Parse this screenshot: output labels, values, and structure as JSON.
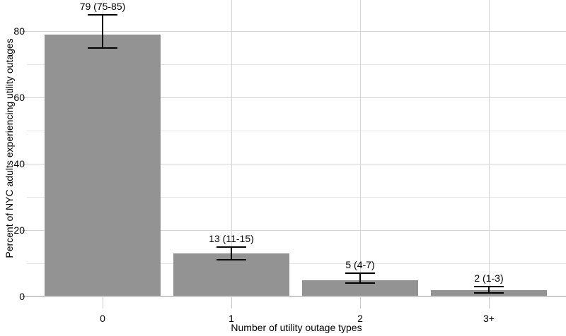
{
  "chart_data": {
    "type": "bar",
    "title": "",
    "xlabel": "Number of utility outage types",
    "ylabel": "Percent of NYC adults experiencing utility outages",
    "categories": [
      "0",
      "1",
      "2",
      "3+"
    ],
    "values": [
      79,
      13,
      5,
      2
    ],
    "error_low": [
      75,
      11,
      4,
      1
    ],
    "error_high": [
      85,
      15,
      7,
      3
    ],
    "bar_labels": [
      "79 (75-85)",
      "13 (11-15)",
      "5 (4-7)",
      "2 (1-3)"
    ],
    "y_ticks": [
      0,
      20,
      40,
      60,
      80
    ],
    "y_minor_gridlines": [
      10,
      30,
      50,
      70
    ],
    "ylim": [
      0,
      89.4
    ],
    "grid": "on",
    "legend": "none",
    "colors": {
      "bar_fill": "#939393",
      "error_bar": "#000000",
      "major_grid": "#d5d5d5",
      "minor_grid": "#e6e6e6",
      "axis_line": "#c9c9c9",
      "text": "#000000",
      "background": "#ffffff"
    }
  }
}
